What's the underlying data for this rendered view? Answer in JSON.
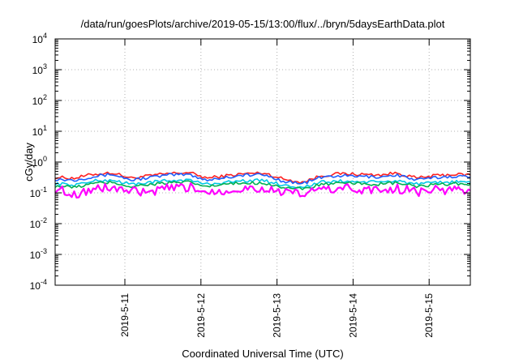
{
  "chart_data": {
    "type": "line",
    "title": "/data/run/goesPlots/archive/2019-05-15/13:00/flux/../bryn/5daysEarthData.plot",
    "xlabel": "Coordinated Universal Time (UTC)",
    "ylabel": "cGy/day",
    "yscale": "log",
    "ylim": [
      0.0001,
      10000
    ],
    "y_ticks": [
      {
        "base": "10",
        "exp": "-4"
      },
      {
        "base": "10",
        "exp": "-3"
      },
      {
        "base": "10",
        "exp": "-2"
      },
      {
        "base": "10",
        "exp": "-1"
      },
      {
        "base": "10",
        "exp": "0"
      },
      {
        "base": "10",
        "exp": "1"
      },
      {
        "base": "10",
        "exp": "2"
      },
      {
        "base": "10",
        "exp": "3"
      },
      {
        "base": "10",
        "exp": "4"
      }
    ],
    "xlim": [
      "2019-05-10 02:00",
      "2019-05-15 13:00"
    ],
    "x_ticks": [
      "2019-5-11",
      "2019-5-12",
      "2019-5-13",
      "2019-5-14",
      "2019-5-15"
    ],
    "x_tick_dates": [
      "2019-05-11 00:00",
      "2019-05-12 00:00",
      "2019-05-13 00:00",
      "2019-05-14 00:00",
      "2019-05-15 00:00"
    ],
    "grid": true,
    "x": [
      "2019-05-10 02:00",
      "2019-05-10 08:00",
      "2019-05-10 14:00",
      "2019-05-10 20:00",
      "2019-05-11 02:00",
      "2019-05-11 08:00",
      "2019-05-11 14:00",
      "2019-05-11 20:00",
      "2019-05-12 02:00",
      "2019-05-12 08:00",
      "2019-05-12 14:00",
      "2019-05-12 20:00",
      "2019-05-13 02:00",
      "2019-05-13 08:00",
      "2019-05-13 14:00",
      "2019-05-13 20:00",
      "2019-05-14 02:00",
      "2019-05-14 08:00",
      "2019-05-14 14:00",
      "2019-05-14 20:00",
      "2019-05-15 02:00",
      "2019-05-15 08:00",
      "2019-05-15 13:00"
    ],
    "series": [
      {
        "color": "#ff2020",
        "values": [
          0.32,
          0.3,
          0.4,
          0.45,
          0.3,
          0.36,
          0.42,
          0.46,
          0.3,
          0.36,
          0.42,
          0.44,
          0.28,
          0.22,
          0.36,
          0.42,
          0.4,
          0.38,
          0.44,
          0.3,
          0.36,
          0.4,
          0.38
        ]
      },
      {
        "color": "#1f5fff",
        "values": [
          0.28,
          0.26,
          0.34,
          0.4,
          0.26,
          0.32,
          0.38,
          0.4,
          0.26,
          0.32,
          0.38,
          0.38,
          0.24,
          0.2,
          0.32,
          0.36,
          0.34,
          0.33,
          0.38,
          0.26,
          0.31,
          0.35,
          0.33
        ]
      },
      {
        "color": "#00c8e6",
        "values": [
          0.2,
          0.18,
          0.24,
          0.26,
          0.19,
          0.22,
          0.25,
          0.26,
          0.19,
          0.22,
          0.25,
          0.25,
          0.18,
          0.15,
          0.22,
          0.24,
          0.23,
          0.22,
          0.25,
          0.19,
          0.21,
          0.23,
          0.22
        ]
      },
      {
        "color": "#00b050",
        "values": [
          0.17,
          0.15,
          0.2,
          0.22,
          0.16,
          0.19,
          0.21,
          0.22,
          0.16,
          0.19,
          0.21,
          0.21,
          0.15,
          0.13,
          0.19,
          0.2,
          0.2,
          0.19,
          0.21,
          0.16,
          0.18,
          0.2,
          0.19
        ]
      },
      {
        "color": "#ff00ff",
        "values": [
          0.14,
          0.09,
          0.13,
          0.15,
          0.11,
          0.1,
          0.14,
          0.15,
          0.11,
          0.12,
          0.14,
          0.14,
          0.1,
          0.09,
          0.13,
          0.14,
          0.13,
          0.12,
          0.14,
          0.11,
          0.12,
          0.13,
          0.12
        ]
      }
    ]
  }
}
